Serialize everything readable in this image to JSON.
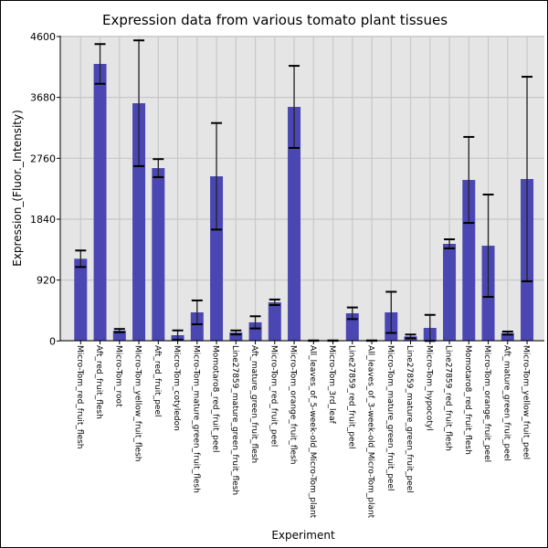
{
  "chart_data": {
    "type": "bar",
    "title": "Expression data from various tomato plant tissues",
    "xlabel": "Experiment",
    "ylabel": "Expression_(Fluor._Intensity)",
    "ylim": [
      0,
      4600
    ],
    "yticks": [
      0,
      920,
      1840,
      2760,
      3680,
      4600
    ],
    "grid": true,
    "bar_color": "#4b47b2",
    "background_color": "#e5e5e5",
    "categories": [
      "Micro-Tom_red_fruit_flesh",
      "Aft_red_fruit_flesh",
      "Micro-Tom_root",
      "Micro-Tom_yellow_fruit_flesh",
      "Aft_red_fruit_peel",
      "Micro-Tom_cotyledon",
      "Micro-Tom_mature_green_fruit_flesh",
      "Momotaro8_red_fruit_peel",
      "Line27859_mature_green_fruit_flesh",
      "Aft_mature_green_fruit_flesh",
      "Micro-Tom_red_fruit_peel",
      "Micro-Tom_orange_fruit_flesh",
      "All_leaves_of_5-week-old_Micro-Tom_plant",
      "Micro-Tom_3rd_leaf",
      "Line27859_red_fruit_peel",
      "All_leaves_of_3-week-old_Micro-Tom_plant",
      "Micro-Tom_mature_green_fruit_peel",
      "Line27859_mature_green_fruit_peel",
      "Micro-Tom_hypocotyl",
      "Line27859_red_fruit_flesh",
      "Momotaro8_red_fruit_flesh",
      "Micro-Tom_orange_fruit_peel",
      "Aft_mature_green_fruit_peel",
      "Micro-Tom_yellow_fruit_peel"
    ],
    "values": [
      1242,
      4186,
      156,
      3592,
      2612,
      87,
      432,
      2488,
      128,
      281,
      584,
      3537,
      5,
      5,
      418,
      5,
      432,
      69,
      197,
      1467,
      2433,
      1439,
      119,
      2447
    ],
    "errors": [
      125,
      300,
      25,
      950,
      136,
      72,
      180,
      805,
      30,
      92,
      42,
      620,
      3,
      3,
      88,
      3,
      311,
      28,
      197,
      69,
      650,
      773,
      23,
      1545
    ]
  }
}
